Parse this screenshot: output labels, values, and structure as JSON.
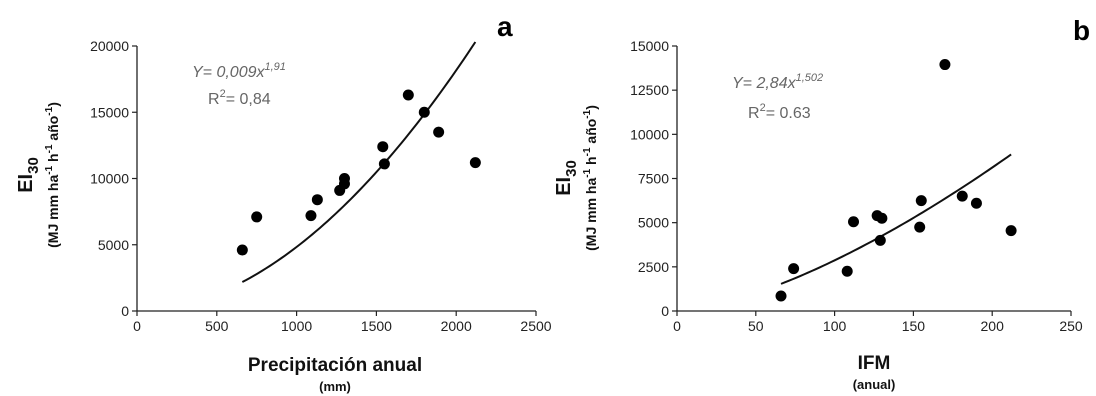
{
  "chart_data": [
    {
      "panel_label": "a",
      "type": "scatter",
      "xlabel": "Precipitación anual",
      "xlabel_sub": "(mm)",
      "ylabel": "EI",
      "ylabel_sub": "30",
      "yunit": "(MJ mm ha-1 h-1 año-1)",
      "xlim": [
        0,
        2500
      ],
      "ylim": [
        0,
        20000
      ],
      "xticks": [
        "0",
        "500",
        "1000",
        "1500",
        "2000",
        "2500"
      ],
      "yticks": [
        "0",
        "5000",
        "10000",
        "15000",
        "20000"
      ],
      "equation": {
        "base": "Y= 0,009x",
        "exponent": "1,91"
      },
      "r2": {
        "prefix": "R",
        "exp": "2",
        "value": "= 0,84"
      },
      "fit": {
        "a": 0.009,
        "b": 1.91,
        "x_range": [
          660,
          2120
        ]
      },
      "points": [
        {
          "x": 660,
          "y": 4600
        },
        {
          "x": 750,
          "y": 7100
        },
        {
          "x": 1090,
          "y": 7200
        },
        {
          "x": 1130,
          "y": 8400
        },
        {
          "x": 1270,
          "y": 9100
        },
        {
          "x": 1300,
          "y": 9600
        },
        {
          "x": 1300,
          "y": 10000
        },
        {
          "x": 1540,
          "y": 12400
        },
        {
          "x": 1550,
          "y": 11100
        },
        {
          "x": 1700,
          "y": 16300
        },
        {
          "x": 1800,
          "y": 15000
        },
        {
          "x": 1890,
          "y": 13500
        },
        {
          "x": 2120,
          "y": 11200
        }
      ]
    },
    {
      "panel_label": "b",
      "type": "scatter",
      "xlabel": "IFM",
      "xlabel_sub": "(anual)",
      "ylabel": "EI",
      "ylabel_sub": "30",
      "yunit": "(MJ mm ha-1 h-1 año-1)",
      "xlim": [
        0,
        250
      ],
      "ylim": [
        0,
        15000
      ],
      "xticks": [
        "0",
        "50",
        "100",
        "150",
        "200",
        "250"
      ],
      "yticks": [
        "0",
        "2500",
        "5000",
        "7500",
        "10000",
        "12500",
        "15000"
      ],
      "equation": {
        "base": "Y= 2,84x",
        "exponent": "1,502"
      },
      "r2": {
        "prefix": "R",
        "exp": "2",
        "value": "= 0.63"
      },
      "fit": {
        "a": 2.84,
        "b": 1.502,
        "x_range": [
          66,
          212
        ]
      },
      "points": [
        {
          "x": 66,
          "y": 850
        },
        {
          "x": 74,
          "y": 2400
        },
        {
          "x": 108,
          "y": 2250
        },
        {
          "x": 112,
          "y": 5050
        },
        {
          "x": 127,
          "y": 5400
        },
        {
          "x": 130,
          "y": 5250
        },
        {
          "x": 129,
          "y": 4000
        },
        {
          "x": 154,
          "y": 4750
        },
        {
          "x": 155,
          "y": 6250
        },
        {
          "x": 170,
          "y": 13950
        },
        {
          "x": 181,
          "y": 6500
        },
        {
          "x": 190,
          "y": 6100
        },
        {
          "x": 212,
          "y": 4550
        }
      ]
    }
  ]
}
